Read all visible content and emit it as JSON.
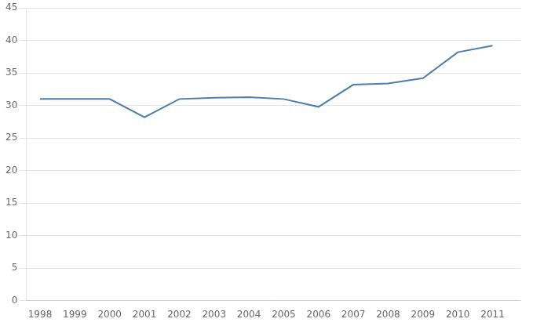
{
  "chart_data": {
    "type": "line",
    "x": [
      1998,
      1999,
      2000,
      2001,
      2002,
      2003,
      2004,
      2005,
      2006,
      2007,
      2008,
      2009,
      2010,
      2011
    ],
    "values": [
      31.0,
      31.0,
      31.0,
      28.2,
      31.0,
      31.2,
      31.3,
      31.0,
      29.8,
      33.2,
      33.4,
      34.2,
      38.2,
      39.2
    ],
    "color": "#4d7dab",
    "xlim": [
      1997.6,
      2011.8
    ],
    "xticks": [
      1998,
      1999,
      2000,
      2001,
      2002,
      2003,
      2004,
      2005,
      2006,
      2007,
      2008,
      2009,
      2010,
      2011
    ],
    "ylim": [
      0,
      45
    ],
    "yticks": [
      0,
      5,
      10,
      15,
      20,
      25,
      30,
      35,
      40,
      45
    ],
    "grid": "y"
  }
}
